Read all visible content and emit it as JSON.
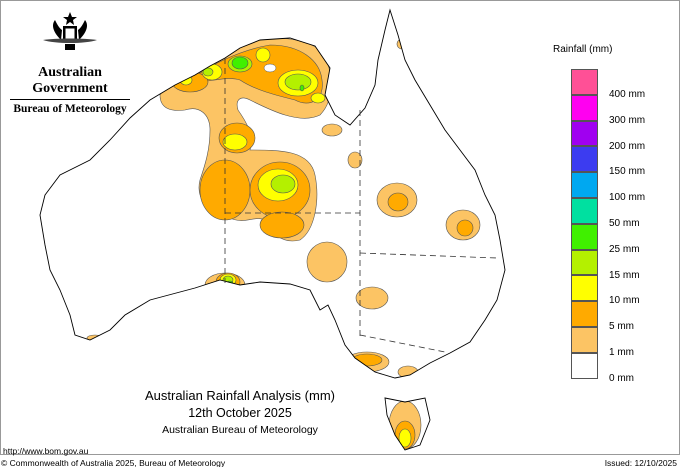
{
  "header": {
    "government": "Australian Government",
    "bureau": "Bureau of Meteorology"
  },
  "map": {
    "title": "Australian Rainfall Analysis (mm)",
    "date": "12th October 2025",
    "source": "Australian Bureau of Meteorology"
  },
  "legend": {
    "title": "Rainfall (mm)",
    "bins": [
      {
        "color": "#ff5096"
      },
      {
        "color": "#ff00f0"
      },
      {
        "color": "#a000f0"
      },
      {
        "color": "#3c3cf0"
      },
      {
        "color": "#00a8f0"
      },
      {
        "color": "#00e0a0"
      },
      {
        "color": "#40f000"
      },
      {
        "color": "#b4f000"
      },
      {
        "color": "#ffff00"
      },
      {
        "color": "#ffaa00"
      },
      {
        "color": "#fcc464"
      },
      {
        "color": "#ffffff"
      }
    ],
    "labels": [
      "400 mm",
      "300 mm",
      "200 mm",
      "150 mm",
      "100 mm",
      "50 mm",
      "25 mm",
      "15 mm",
      "10 mm",
      "5 mm",
      "1 mm",
      "0 mm"
    ]
  },
  "footer": {
    "url": "http://www.bom.gov.au",
    "copyright": "© Commonwealth of Australia 2025, Bureau of Meteorology",
    "issued": "Issued: 12/10/2025"
  }
}
